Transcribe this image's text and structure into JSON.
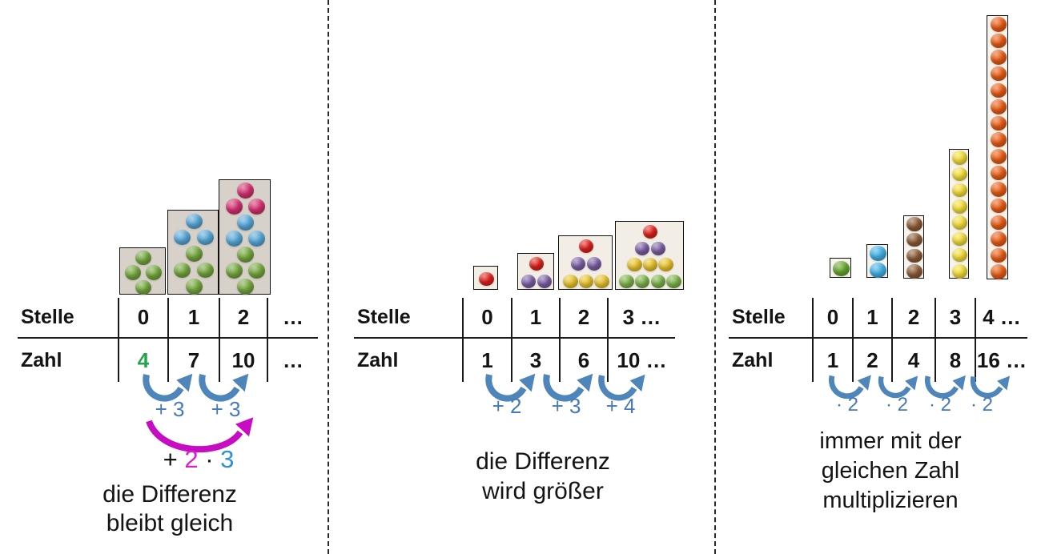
{
  "palette": {
    "green": "#74a63d",
    "green_mid": "#7cb349",
    "green_right": "#67a72f",
    "blue": "#57a7d8",
    "sky_blue": "#41b1e6",
    "pink": "#d2306f",
    "red": "#e0201a",
    "purple": "#7c5fa5",
    "yellow": "#e9c42c",
    "yellow_bright": "#f4de39",
    "brown": "#8b5a35",
    "orange": "#e85c15"
  },
  "colors": {
    "arrow_blue": "#4e85ba",
    "arrow_label_blue": "#4679bb",
    "arrow_magenta": "#c80cc3",
    "table_line": "#1a1a1a",
    "text": "#141414",
    "green_number": "#22a449",
    "label_magenta": "#da1ed0",
    "label_blue": "#2e90d4"
  },
  "panels": [
    {
      "id": "arithmetic-sequence",
      "caption_lines": [
        "die Differenz",
        "bleibt gleich"
      ],
      "table": {
        "row_labels": [
          "Stelle",
          "Zahl"
        ],
        "stelle": [
          {
            "text": "0"
          },
          {
            "text": "1"
          },
          {
            "text": "2"
          },
          {
            "text": "…"
          }
        ],
        "zahl": [
          {
            "text": "4",
            "color": "green_number"
          },
          {
            "text": "7"
          },
          {
            "text": "10"
          },
          {
            "text": "…"
          }
        ]
      },
      "arrows": [
        "+ 3",
        "+ 3"
      ],
      "long_arrow_label_parts": [
        {
          "text": "+ ",
          "color": "text"
        },
        {
          "text": "2",
          "color": "label_magenta"
        },
        {
          "text": " · ",
          "color": "text"
        },
        {
          "text": "3",
          "color": "label_blue"
        }
      ],
      "figures": [
        {
          "type": "layered",
          "layers": [
            {
              "color": "green",
              "count": 4
            }
          ]
        },
        {
          "type": "layered",
          "layers": [
            {
              "color": "blue",
              "count": 3
            },
            {
              "color": "green",
              "count": 4
            }
          ]
        },
        {
          "type": "layered",
          "layers": [
            {
              "color": "pink",
              "count": 3
            },
            {
              "color": "blue",
              "count": 3
            },
            {
              "color": "green",
              "count": 4
            }
          ]
        }
      ]
    },
    {
      "id": "growing-difference-sequence",
      "caption_lines": [
        "die Differenz",
        "wird größer"
      ],
      "table": {
        "row_labels": [
          "Stelle",
          "Zahl"
        ],
        "stelle": [
          {
            "text": "0"
          },
          {
            "text": "1"
          },
          {
            "text": "2"
          },
          {
            "text": "3 …"
          }
        ],
        "zahl": [
          {
            "text": "1"
          },
          {
            "text": "3"
          },
          {
            "text": "6"
          },
          {
            "text": "10 …"
          }
        ]
      },
      "arrows": [
        "+ 2",
        "+ 3",
        "+ 4"
      ],
      "figures": [
        {
          "type": "triangle",
          "rows": [
            {
              "color": "red",
              "count": 1
            }
          ]
        },
        {
          "type": "triangle",
          "rows": [
            {
              "color": "red",
              "count": 1
            },
            {
              "color": "purple",
              "count": 2
            }
          ]
        },
        {
          "type": "triangle",
          "rows": [
            {
              "color": "red",
              "count": 1
            },
            {
              "color": "purple",
              "count": 2
            },
            {
              "color": "yellow",
              "count": 3
            }
          ]
        },
        {
          "type": "triangle",
          "rows": [
            {
              "color": "red",
              "count": 1
            },
            {
              "color": "purple",
              "count": 2
            },
            {
              "color": "yellow",
              "count": 3
            },
            {
              "color": "green_mid",
              "count": 4
            }
          ]
        }
      ]
    },
    {
      "id": "geometric-sequence",
      "caption_lines": [
        "immer mit der",
        "gleichen Zahl",
        "multiplizieren"
      ],
      "table": {
        "row_labels": [
          "Stelle",
          "Zahl"
        ],
        "stelle": [
          {
            "text": "0"
          },
          {
            "text": "1"
          },
          {
            "text": "2"
          },
          {
            "text": "3"
          },
          {
            "text": "4 …"
          }
        ],
        "zahl": [
          {
            "text": "1"
          },
          {
            "text": "2"
          },
          {
            "text": "4"
          },
          {
            "text": "8"
          },
          {
            "text": "16 …"
          }
        ]
      },
      "arrows": [
        "· 2",
        "· 2",
        "· 2",
        "· 2"
      ],
      "figures": [
        {
          "type": "stack",
          "color": "green_right",
          "count": 1
        },
        {
          "type": "stack",
          "color": "sky_blue",
          "count": 2
        },
        {
          "type": "stack",
          "color": "brown",
          "count": 4
        },
        {
          "type": "stack",
          "color": "yellow_bright",
          "count": 8
        },
        {
          "type": "stack",
          "color": "orange",
          "count": 16
        }
      ]
    }
  ]
}
